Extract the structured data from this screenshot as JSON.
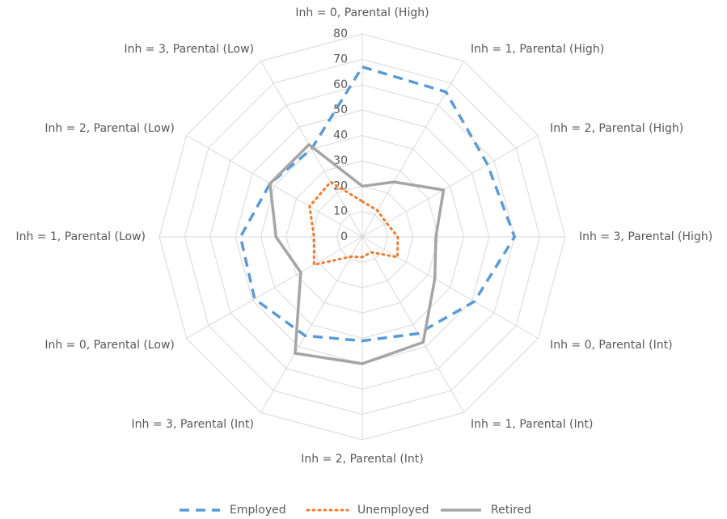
{
  "chart_data": {
    "type": "radar",
    "categories": [
      "Inh = 0, Parental (High)",
      "Inh = 1, Parental (High)",
      "Inh = 2, Parental (High)",
      "Inh = 3, Parental (High)",
      "Inh = 0, Parental (Int)",
      "Inh = 1, Parental (Int)",
      "Inh = 2, Parental (Int)",
      "Inh = 3, Parental (Int)",
      "Inh = 0, Parental (Low)",
      "Inh = 1, Parental (Low)",
      "Inh = 2, Parental (Low)",
      "Inh = 3, Parental (Low)"
    ],
    "series": [
      {
        "name": "Employed",
        "color": "#5b9bd5",
        "dash": "dashed",
        "values": [
          67,
          66,
          57,
          60,
          51,
          44,
          41,
          45,
          49,
          48,
          42,
          40
        ]
      },
      {
        "name": "Unemployed",
        "color": "#ed7d31",
        "dash": "dotted",
        "values": [
          14,
          12,
          11,
          14,
          16,
          7,
          8,
          9,
          22,
          19,
          24,
          25
        ]
      },
      {
        "name": "Retired",
        "color": "#a5a5a5",
        "dash": "solid",
        "values": [
          20,
          25,
          37,
          29,
          33,
          48,
          50,
          53,
          28,
          34,
          42,
          42
        ]
      }
    ],
    "ylim": [
      0,
      80
    ],
    "yticks": [
      0,
      10,
      20,
      30,
      40,
      50,
      60,
      70,
      80
    ],
    "grid": true,
    "legend": "bottom"
  }
}
